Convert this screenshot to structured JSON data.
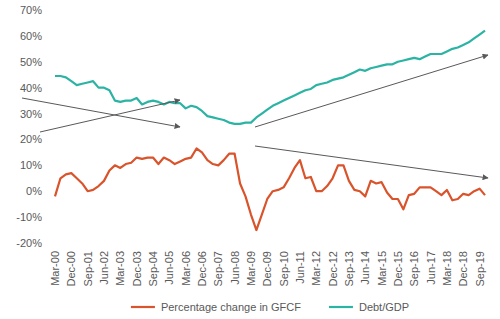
{
  "chart_data": {
    "type": "line",
    "categories": [
      "Mar-00",
      null,
      null,
      "Dec-00",
      null,
      null,
      "Sep-01",
      null,
      null,
      "Jun-02",
      null,
      null,
      "Mar-03",
      null,
      null,
      "Dec-03",
      null,
      null,
      "Sep-04",
      null,
      null,
      "Jun-05",
      null,
      null,
      "Mar-06",
      null,
      null,
      "Dec-06",
      null,
      null,
      "Sep-07",
      null,
      null,
      "Jun-08",
      null,
      null,
      "Mar-09",
      null,
      null,
      "Dec-09",
      null,
      null,
      "Sep-10",
      null,
      null,
      "Jun-11",
      null,
      null,
      "Mar-12",
      null,
      null,
      "Dec-12",
      null,
      null,
      "Sep-13",
      null,
      null,
      "Jun-14",
      null,
      null,
      "Mar-15",
      null,
      null,
      "Dec-15",
      null,
      null,
      "Sep-16",
      null,
      null,
      "Jun-17",
      null,
      null,
      "Mar-18",
      null,
      null,
      "Dec-18",
      null,
      null,
      "Sep-19",
      null
    ],
    "series": [
      {
        "name": "Percentage change in GFCF",
        "color": "#d9532b",
        "values": [
          -2,
          5,
          6.5,
          7,
          5,
          3,
          0,
          0.5,
          2,
          4,
          8,
          10,
          9,
          10.5,
          11,
          13,
          12.5,
          13,
          13,
          10.5,
          13,
          12,
          10.5,
          11.5,
          12.5,
          13,
          16.5,
          15,
          12,
          10.5,
          10,
          12,
          14.5,
          14.5,
          3,
          -2,
          -9,
          -15,
          -9,
          -3,
          0,
          0.5,
          1.5,
          5,
          9,
          12,
          5,
          5.5,
          0,
          0,
          2,
          5,
          10,
          10,
          4,
          0.5,
          0,
          -2,
          4,
          3,
          3.5,
          -0.5,
          -3,
          -3,
          -7,
          -1.5,
          -1,
          1.5,
          1.5,
          1.5,
          0,
          -1.5,
          0.5,
          -3.5,
          -3,
          -1,
          -1.5,
          0,
          1,
          -1.5
        ]
      },
      {
        "name": "Debt/GDP",
        "color": "#2bb3a3",
        "values": [
          44.5,
          44.5,
          44,
          42.5,
          41,
          41.5,
          42,
          42.5,
          40,
          40,
          39,
          35,
          34.5,
          35,
          35,
          36,
          33.5,
          34.5,
          35,
          34.5,
          33.5,
          34.5,
          34,
          34,
          32,
          33,
          32.5,
          31,
          29,
          28.5,
          28,
          27.5,
          26.5,
          26,
          26,
          26.5,
          26.5,
          28.5,
          30,
          31.5,
          33,
          34,
          35,
          36,
          37,
          38,
          39,
          39.5,
          41,
          41.5,
          42,
          43,
          43.5,
          44,
          45,
          46,
          47,
          46.5,
          47.5,
          48,
          48.5,
          49,
          49,
          50,
          50.5,
          51,
          51.5,
          51,
          52,
          53,
          53,
          53,
          54,
          55,
          55.5,
          56.5,
          57.5,
          59,
          60.5,
          62
        ]
      }
    ],
    "ylim": [
      -20,
      70
    ],
    "yticks": [
      {
        "value": -20,
        "label": "-20%"
      },
      {
        "value": -10,
        "label": "-10%"
      },
      {
        "value": 0,
        "label": "0%"
      },
      {
        "value": 10,
        "label": "10%"
      },
      {
        "value": 20,
        "label": "20%"
      },
      {
        "value": 30,
        "label": "30%"
      },
      {
        "value": 40,
        "label": "40%"
      },
      {
        "value": 50,
        "label": "50%"
      },
      {
        "value": 60,
        "label": "60%"
      },
      {
        "value": 70,
        "label": "70%"
      }
    ],
    "grid": false,
    "legend": "bottom"
  }
}
